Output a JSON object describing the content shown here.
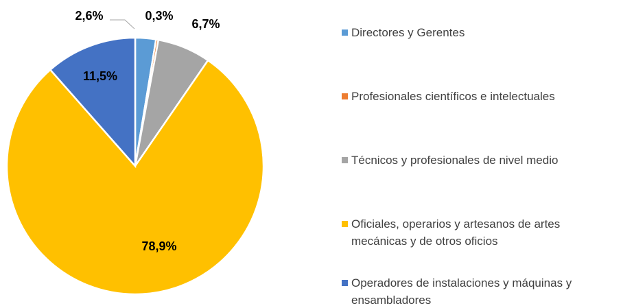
{
  "chart_data": {
    "type": "pie",
    "categories": [
      "Directores y Gerentes",
      "Profesionales científicos e intelectuales",
      "Técnicos y profesionales de nivel medio",
      "Oficiales, operarios y artesanos de artes mecánicas y de otros oficios",
      "Operadores de instalaciones y máquinas y ensambladores"
    ],
    "values": [
      2.6,
      0.3,
      6.7,
      78.9,
      11.5
    ],
    "value_labels": [
      "2,6%",
      "0,3%",
      "6,7%",
      "78,9%",
      "11,5%"
    ],
    "colors": [
      "#5b9bd5",
      "#ed7d31",
      "#a5a5a5",
      "#ffc000",
      "#4472c4"
    ],
    "legend": "right"
  }
}
